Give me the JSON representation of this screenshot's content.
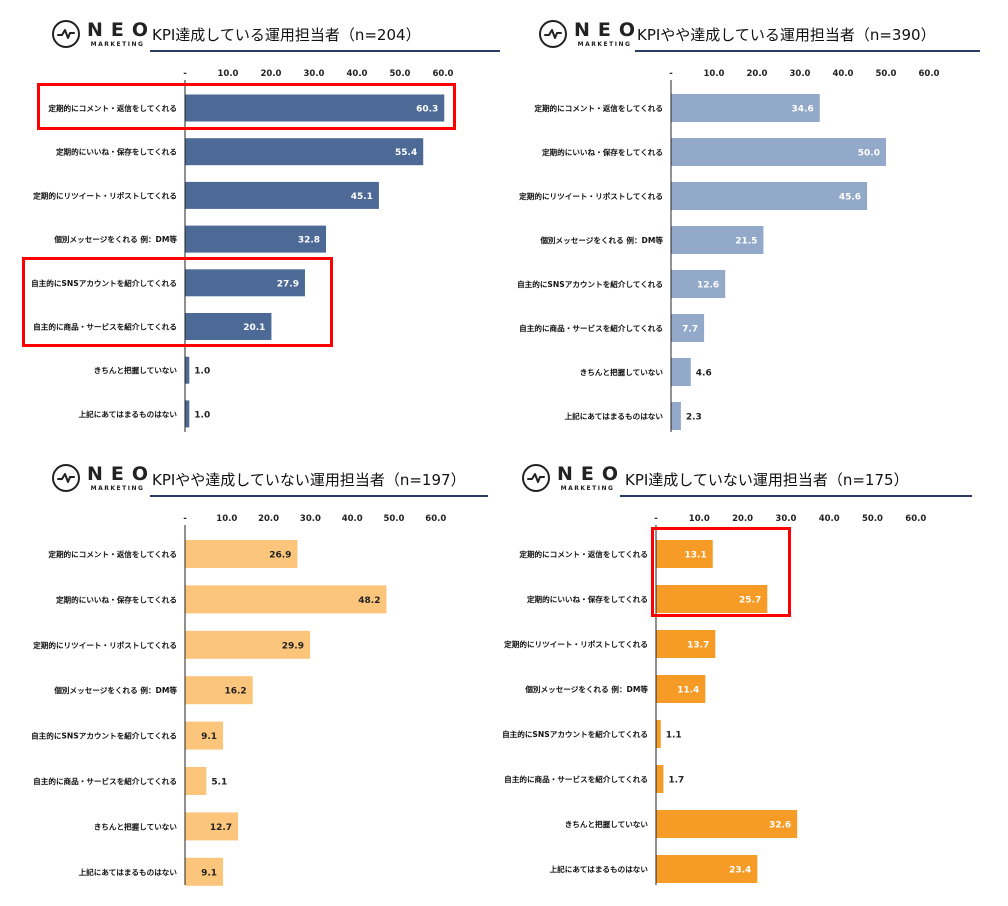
{
  "brand": {
    "word": "NEO",
    "sub": "MARKETING"
  },
  "categories": [
    "定期的にコメント・返信をしてくれる",
    "定期的にいいね・保存をしてくれる",
    "定期的にリツイート・リポストしてくれる",
    "個別メッセージをくれる 例：DM等",
    "自主的にSNSアカウントを紹介してくれる",
    "自主的に商品・サービスを紹介してくれる",
    "きちんと把握していない",
    "上記にあてはまるものはない"
  ],
  "chart_data": [
    {
      "type": "bar",
      "title": "KPI達成している運用担当者（n=204）",
      "orientation": "horizontal",
      "color": "#4d6a96",
      "xlim": [
        0,
        60
      ],
      "ticks": [
        "-",
        "10.0",
        "20.0",
        "30.0",
        "40.0",
        "50.0",
        "60.0"
      ],
      "values": [
        60.3,
        55.4,
        45.1,
        32.8,
        27.9,
        20.1,
        1.0,
        1.0
      ],
      "labels": [
        "60.3",
        "55.4",
        "45.1",
        "32.8",
        "27.9",
        "20.1",
        "1.0",
        "1.0"
      ]
    },
    {
      "type": "bar",
      "title": "KPIやや達成している運用担当者（n=390）",
      "orientation": "horizontal",
      "color": "#93a9c9",
      "xlim": [
        0,
        60
      ],
      "ticks": [
        "-",
        "10.0",
        "20.0",
        "30.0",
        "40.0",
        "50.0",
        "60.0"
      ],
      "values": [
        34.6,
        50.0,
        45.6,
        21.5,
        12.6,
        7.7,
        4.6,
        2.3
      ],
      "labels": [
        "34.6",
        "50.0",
        "45.6",
        "21.5",
        "12.6",
        "7.7",
        "4.6",
        "2.3"
      ]
    },
    {
      "type": "bar",
      "title": "KPIやや達成していない運用担当者（n=197）",
      "orientation": "horizontal",
      "color": "#fbc57b",
      "xlim": [
        0,
        60
      ],
      "ticks": [
        "-",
        "10.0",
        "20.0",
        "30.0",
        "40.0",
        "50.0",
        "60.0"
      ],
      "values": [
        26.9,
        48.2,
        29.9,
        16.2,
        9.1,
        5.1,
        12.7,
        9.1
      ],
      "labels": [
        "26.9",
        "48.2",
        "29.9",
        "16.2",
        "9.1",
        "5.1",
        "12.7",
        "9.1"
      ]
    },
    {
      "type": "bar",
      "title": "KPI達成していない運用担当者（n=175）",
      "orientation": "horizontal",
      "color": "#f59b26",
      "xlim": [
        0,
        60
      ],
      "ticks": [
        "-",
        "10.0",
        "20.0",
        "30.0",
        "40.0",
        "50.0",
        "60.0"
      ],
      "values": [
        13.1,
        25.7,
        13.7,
        11.4,
        1.1,
        1.7,
        32.6,
        23.4
      ],
      "labels": [
        "13.1",
        "25.7",
        "13.7",
        "11.4",
        "1.1",
        "1.7",
        "32.6",
        "23.4"
      ]
    }
  ],
  "colors": {
    "axis": "#222222",
    "underline": "#2b3b64",
    "highlight": "#ff0000"
  }
}
